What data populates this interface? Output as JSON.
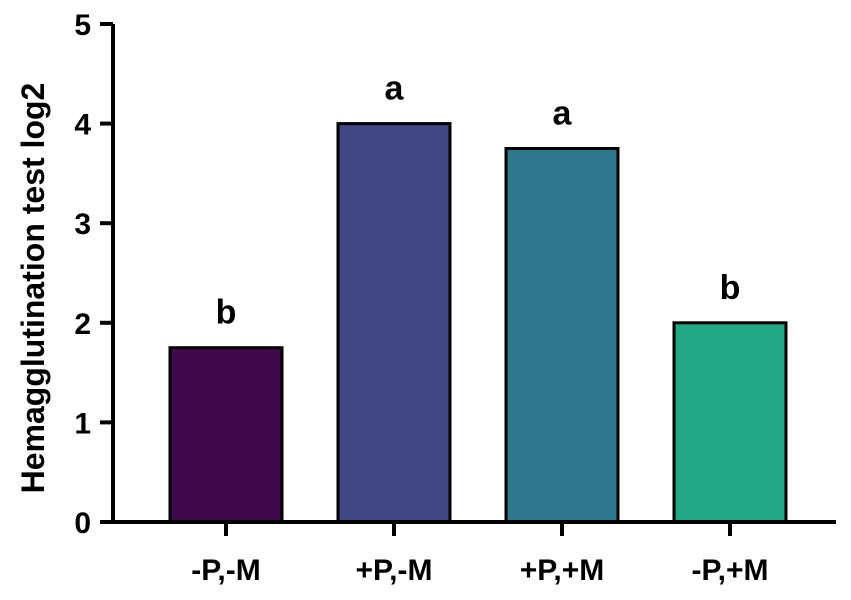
{
  "chart_data": {
    "type": "bar",
    "title": "",
    "xlabel": "",
    "ylabel": "Hemagglutination test log2",
    "ylim": [
      0,
      5
    ],
    "yticks": [
      0,
      1,
      2,
      3,
      4,
      5
    ],
    "grid": false,
    "categories": [
      "-P,-M",
      "+P,-M",
      "+P,+M",
      "-P,+M"
    ],
    "values": [
      1.75,
      4.0,
      3.75,
      2.0
    ],
    "annotations": [
      "b",
      "a",
      "a",
      "b"
    ],
    "colors": [
      "#3e0a4a",
      "#404584",
      "#2e778c",
      "#22a884"
    ]
  }
}
